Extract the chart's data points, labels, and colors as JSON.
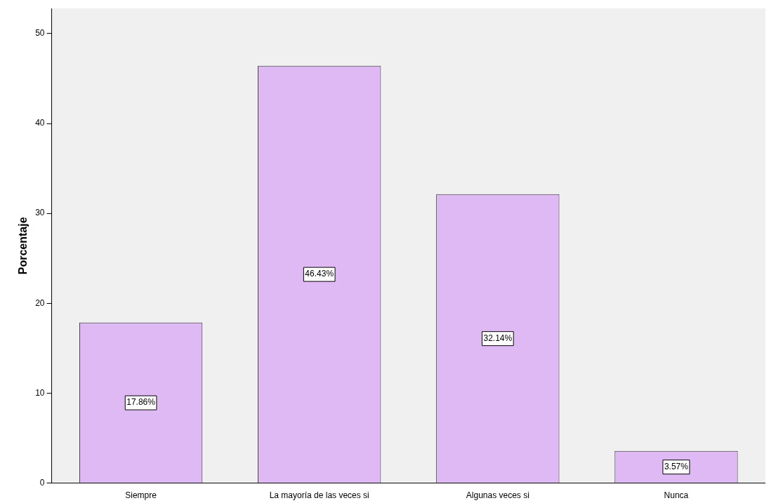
{
  "chart_data": {
    "type": "bar",
    "ylabel": "Porcentaje",
    "categories": [
      "Siempre",
      "La mayoría de las veces si",
      "Algunas veces si",
      "Nunca"
    ],
    "values": [
      17.86,
      46.43,
      32.14,
      3.57
    ],
    "value_labels": [
      "17.86%",
      "46.43%",
      "32.14%",
      "3.57%"
    ],
    "color": "#dfb9f3",
    "ylim": [
      0,
      52.8
    ],
    "yticks": [
      0,
      10,
      20,
      30,
      40,
      50
    ],
    "grid": false,
    "legend": false
  }
}
